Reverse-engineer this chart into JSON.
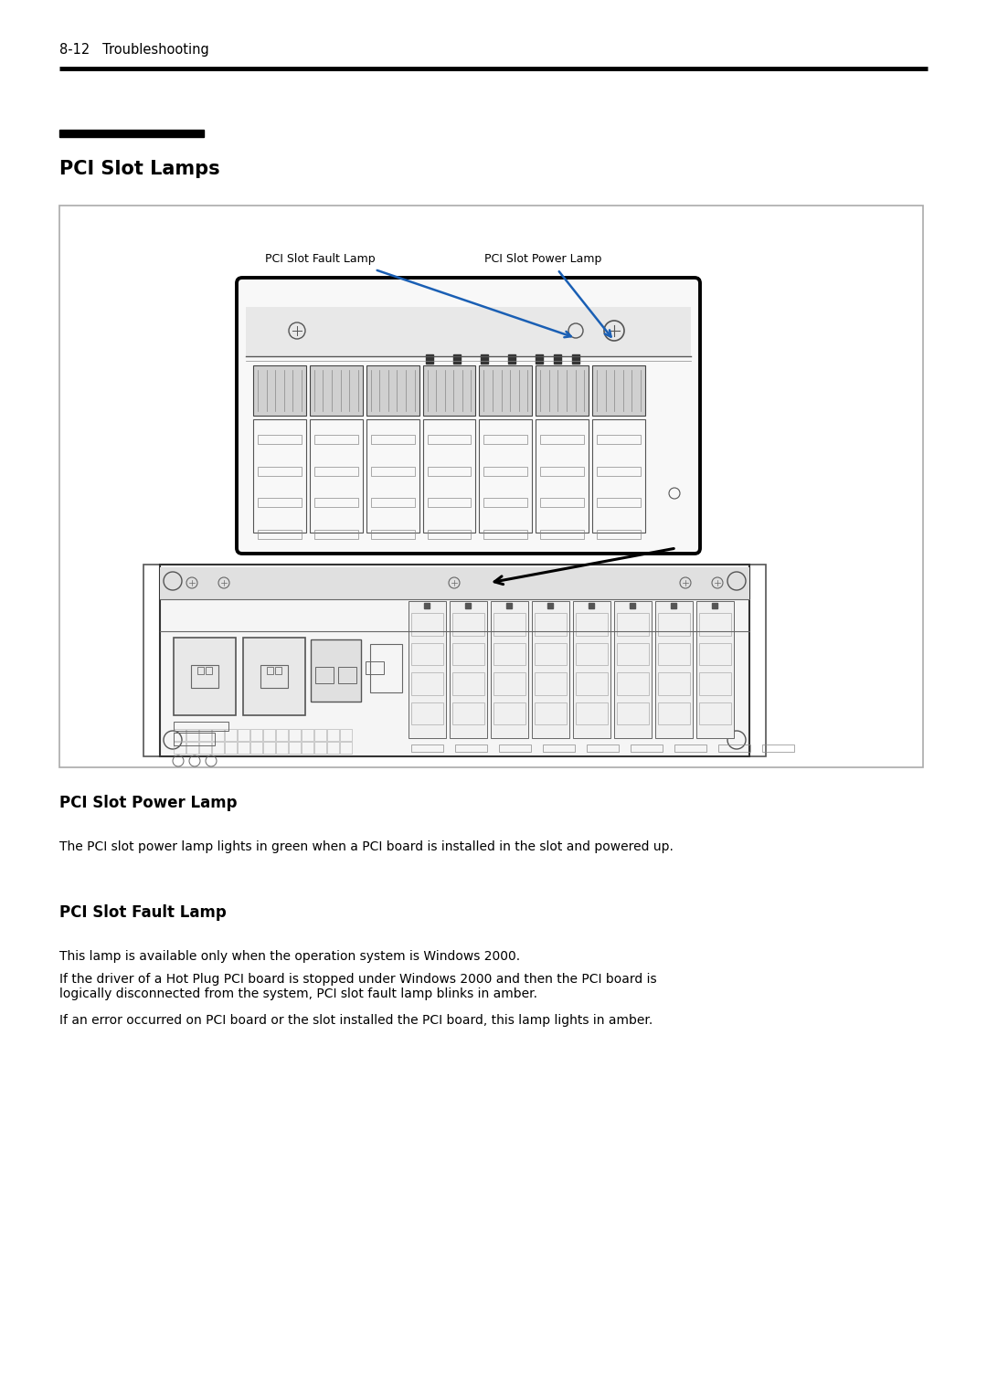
{
  "bg_color": "#ffffff",
  "header_text": "8-12   Troubleshooting",
  "header_fontsize": 10.5,
  "section_title": "PCI Slot Lamps",
  "section_title_fontsize": 15,
  "section2_title": "PCI Slot Power Lamp",
  "section2_title_fontsize": 12,
  "section3_title": "PCI Slot Fault Lamp",
  "section3_title_fontsize": 12,
  "power_lamp_text": "The PCI slot power lamp lights in green when a PCI board is installed in the slot and powered up.",
  "fault_lamp_text1": "This lamp is available only when the operation system is Windows 2000.",
  "fault_lamp_text2": "If the driver of a Hot Plug PCI board is stopped under Windows 2000 and then the PCI board is\nlogically disconnected from the system, PCI slot fault lamp blinks in amber.",
  "fault_lamp_text3": "If an error occurred on PCI board or the slot installed the PCI board, this lamp lights in amber.",
  "body_fontsize": 10,
  "label_fault": "PCI Slot Fault Lamp",
  "label_power": "PCI Slot Power Lamp",
  "arrow_color": "#1a5fb4",
  "line_color": "#000000"
}
